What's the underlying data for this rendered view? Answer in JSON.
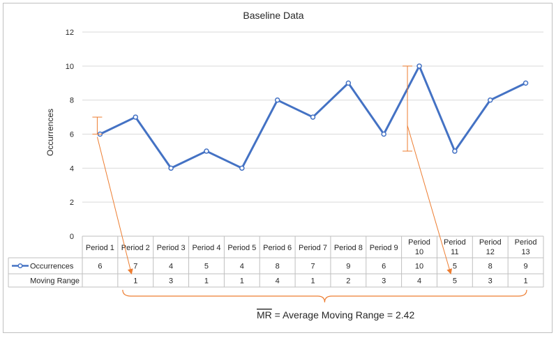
{
  "chart_data": {
    "type": "line",
    "title": "Baseline Data",
    "ylabel": "Occurrences",
    "xlabel": "",
    "ylim": [
      0,
      12
    ],
    "yticks": [
      0,
      2,
      4,
      6,
      8,
      10,
      12
    ],
    "grid": true,
    "categories": [
      "Period 1",
      "Period 2",
      "Period 3",
      "Period 4",
      "Period 5",
      "Period 6",
      "Period 7",
      "Period 8",
      "Period 9",
      "Period 10",
      "Period 11",
      "Period 12",
      "Period 13"
    ],
    "series": [
      {
        "name": "Occurrences",
        "values": [
          6,
          7,
          4,
          5,
          4,
          8,
          7,
          9,
          6,
          10,
          5,
          8,
          9
        ]
      }
    ],
    "table": {
      "row_labels": [
        "Occurrences",
        "Moving Range"
      ],
      "moving_range": [
        "",
        "1",
        "3",
        "1",
        "1",
        "4",
        "1",
        "2",
        "3",
        "4",
        "5",
        "3",
        "1"
      ]
    },
    "annotation": {
      "mr_symbol": "MR",
      "text": " = Average Moving Range = 2.42"
    }
  },
  "colors": {
    "series": "#4472c4",
    "annotation": "#ed7d31",
    "grid": "#d9d9d9",
    "border": "#bfbfbf"
  }
}
